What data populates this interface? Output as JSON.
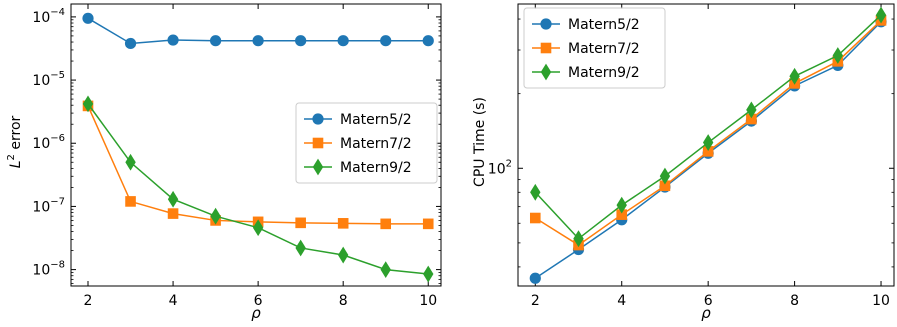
{
  "figure": {
    "background": "#ffffff",
    "series_colors": [
      "#1f77b4",
      "#ff7f0e",
      "#2ca02c"
    ]
  },
  "chart_data": [
    {
      "type": "line",
      "title": "",
      "xlabel": "ρ",
      "ylabel_base": "L",
      "ylabel_sup": "2",
      "ylabel_rest": " error",
      "xlim": [
        1.6,
        10.3
      ],
      "ylim": [
        5.5e-09,
        0.00016
      ],
      "yscale": "log",
      "xticks": [
        2,
        4,
        6,
        8,
        10
      ],
      "xtick_labels": [
        "2",
        "4",
        "6",
        "8",
        "10"
      ],
      "yticks": [
        {
          "value": 1e-08,
          "base": "10",
          "exp": "−8"
        },
        {
          "value": 1e-07,
          "base": "10",
          "exp": "−7"
        },
        {
          "value": 1e-06,
          "base": "10",
          "exp": "−6"
        },
        {
          "value": 1e-05,
          "base": "10",
          "exp": "−5"
        },
        {
          "value": 0.0001,
          "base": "10",
          "exp": "−4"
        }
      ],
      "grid": false,
      "legend_position": "center-right",
      "x": [
        2,
        3,
        4,
        5,
        6,
        7,
        8,
        9,
        10
      ],
      "series": [
        {
          "name": "Matern5/2",
          "color": "#1f77b4",
          "marker": "circle",
          "values": [
            9.5e-05,
            3.8e-05,
            4.3e-05,
            4.2e-05,
            4.2e-05,
            4.2e-05,
            4.2e-05,
            4.2e-05,
            4.2e-05
          ]
        },
        {
          "name": "Matern7/2",
          "color": "#ff7f0e",
          "marker": "square",
          "values": [
            3.9e-06,
            1.2e-07,
            7.7e-08,
            6e-08,
            5.7e-08,
            5.5e-08,
            5.4e-08,
            5.3e-08,
            5.3e-08
          ]
        },
        {
          "name": "Matern9/2",
          "color": "#2ca02c",
          "marker": "diamond",
          "values": [
            4.2e-06,
            5e-07,
            1.3e-07,
            7e-08,
            4.6e-08,
            2.2e-08,
            1.7e-08,
            1e-08,
            8.5e-09
          ]
        }
      ]
    },
    {
      "type": "line",
      "title": "",
      "xlabel": "ρ",
      "ylabel": "CPU Time (s)",
      "xlim": [
        1.6,
        10.3
      ],
      "ylim": [
        33.5,
        460
      ],
      "yscale": "log",
      "xticks": [
        2,
        4,
        6,
        8,
        10
      ],
      "xtick_labels": [
        "2",
        "4",
        "6",
        "8",
        "10"
      ],
      "yticks": [
        {
          "value": 100,
          "base": "10",
          "exp": "2"
        }
      ],
      "grid": false,
      "legend_position": "top-left",
      "x": [
        2,
        3,
        4,
        5,
        6,
        7,
        8,
        9,
        10
      ],
      "series": [
        {
          "name": "Matern5/2",
          "color": "#1f77b4",
          "marker": "circle",
          "values": [
            36,
            47,
            62,
            84,
            115,
            155,
            215,
            260,
            390
          ]
        },
        {
          "name": "Matern7/2",
          "color": "#ff7f0e",
          "marker": "square",
          "values": [
            63,
            49,
            65,
            85,
            117,
            158,
            220,
            270,
            395
          ]
        },
        {
          "name": "Matern9/2",
          "color": "#2ca02c",
          "marker": "diamond",
          "values": [
            80,
            52,
            71,
            93,
            127,
            172,
            235,
            285,
            415
          ]
        }
      ]
    }
  ]
}
